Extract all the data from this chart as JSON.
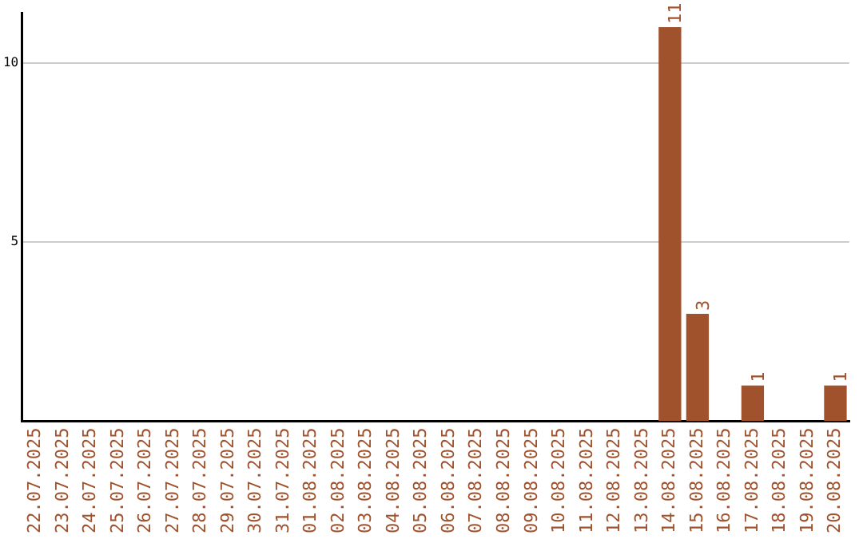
{
  "chart_data": {
    "type": "bar",
    "categories": [
      "22.07.2025",
      "23.07.2025",
      "24.07.2025",
      "25.07.2025",
      "26.07.2025",
      "27.07.2025",
      "28.07.2025",
      "29.07.2025",
      "30.07.2025",
      "31.07.2025",
      "01.08.2025",
      "02.08.2025",
      "03.08.2025",
      "04.08.2025",
      "05.08.2025",
      "06.08.2025",
      "07.08.2025",
      "08.08.2025",
      "09.08.2025",
      "10.08.2025",
      "11.08.2025",
      "12.08.2025",
      "13.08.2025",
      "14.08.2025",
      "15.08.2025",
      "16.08.2025",
      "17.08.2025",
      "18.08.2025",
      "19.08.2025",
      "20.08.2025"
    ],
    "values": [
      0,
      0,
      0,
      0,
      0,
      0,
      0,
      0,
      0,
      0,
      0,
      0,
      0,
      0,
      0,
      0,
      0,
      0,
      0,
      0,
      0,
      0,
      0,
      11,
      3,
      0,
      1,
      0,
      0,
      1
    ],
    "value_labels": [
      null,
      null,
      null,
      null,
      null,
      null,
      null,
      null,
      null,
      null,
      null,
      null,
      null,
      null,
      null,
      null,
      null,
      null,
      null,
      null,
      null,
      null,
      null,
      "11",
      "3",
      null,
      "1",
      null,
      null,
      "1"
    ],
    "color": "#a0522d",
    "ylim": [
      0,
      11.4
    ],
    "yticks": [
      5,
      10
    ],
    "grid": "y"
  }
}
